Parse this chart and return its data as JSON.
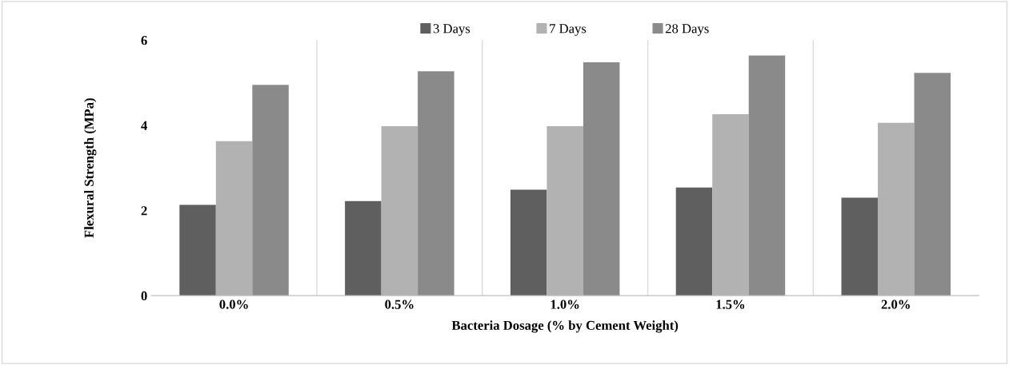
{
  "chart_data": {
    "type": "bar",
    "xlabel": "Bacteria Dosage (% by Cement Weight)",
    "ylabel": "Flexural Strength (MPa)",
    "categories": [
      "0.0%",
      "0.5%",
      "1.0%",
      "1.5%",
      "2.0%"
    ],
    "series": [
      {
        "name": "3 Days",
        "color": "#5f5f5f",
        "values": [
          2.13,
          2.22,
          2.49,
          2.54,
          2.3
        ]
      },
      {
        "name": "7 Days",
        "color": "#b2b2b2",
        "values": [
          3.63,
          3.98,
          3.98,
          4.26,
          4.06
        ]
      },
      {
        "name": "28 Days",
        "color": "#8a8a8a",
        "values": [
          4.95,
          5.27,
          5.48,
          5.64,
          5.23
        ]
      }
    ],
    "ylim": [
      0,
      6
    ],
    "yticks": [
      0,
      2,
      4,
      6
    ],
    "grid": "x",
    "legend": "top"
  }
}
